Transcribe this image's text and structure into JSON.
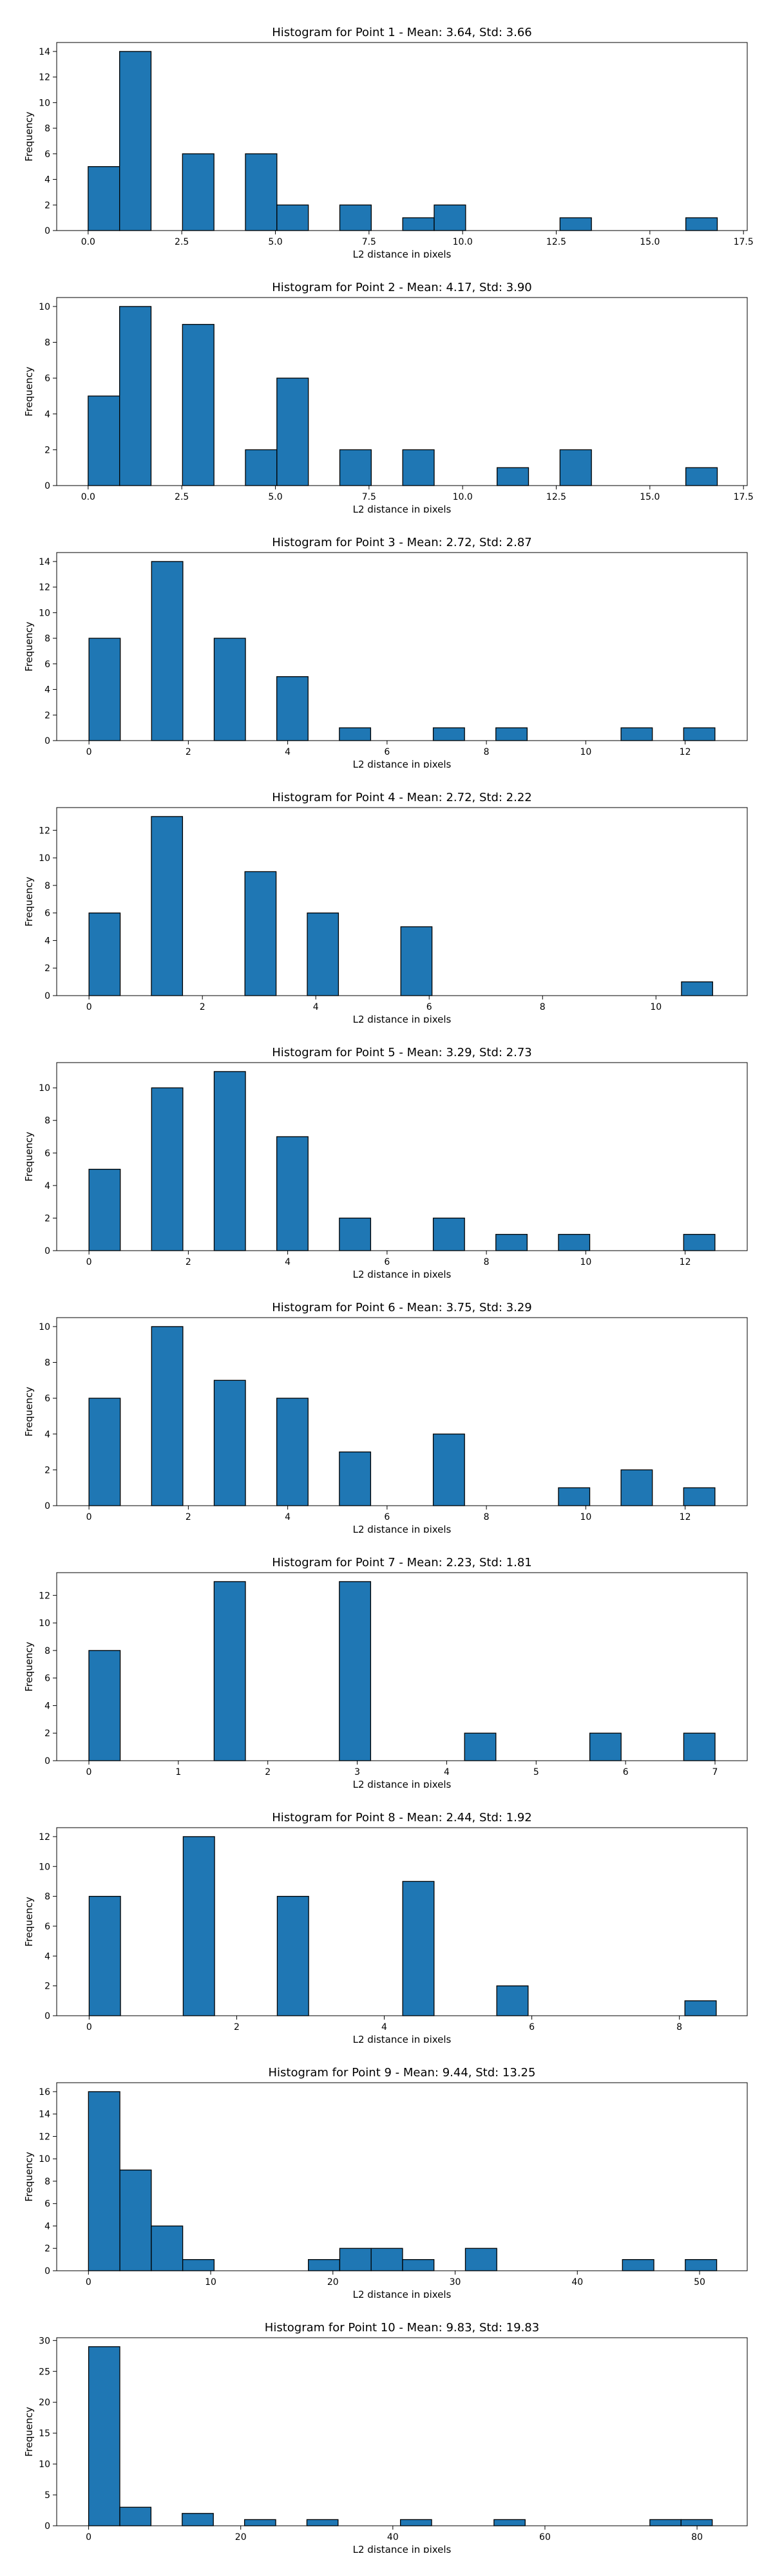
{
  "chart_data": [
    {
      "type": "bar",
      "title": "Histogram for Point 1 - Mean: 3.64, Std: 3.66",
      "xlabel": "L2 distance in pixels",
      "ylabel": "Frequency",
      "xlim": [
        -0.84,
        17.6
      ],
      "ylim": [
        0,
        14.7
      ],
      "xticks": [
        0.0,
        2.5,
        5.0,
        7.5,
        10.0,
        12.5,
        15.0,
        17.5
      ],
      "xtick_labels": [
        "0.0",
        "2.5",
        "5.0",
        "7.5",
        "10.0",
        "12.5",
        "15.0",
        "17.5"
      ],
      "yticks": [
        0,
        2,
        4,
        6,
        8,
        10,
        12,
        14
      ],
      "ytick_labels": [
        "0",
        "2",
        "4",
        "6",
        "8",
        "10",
        "12",
        "14"
      ],
      "bars": [
        {
          "x0": 0.0,
          "x1": 0.84,
          "count": 5
        },
        {
          "x0": 0.84,
          "x1": 1.68,
          "count": 14
        },
        {
          "x0": 2.52,
          "x1": 3.36,
          "count": 6
        },
        {
          "x0": 4.2,
          "x1": 5.04,
          "count": 6
        },
        {
          "x0": 5.04,
          "x1": 5.88,
          "count": 2
        },
        {
          "x0": 6.72,
          "x1": 7.56,
          "count": 2
        },
        {
          "x0": 8.4,
          "x1": 9.24,
          "count": 1
        },
        {
          "x0": 9.24,
          "x1": 10.08,
          "count": 2
        },
        {
          "x0": 12.6,
          "x1": 13.44,
          "count": 1
        },
        {
          "x0": 15.96,
          "x1": 16.8,
          "count": 1
        }
      ]
    },
    {
      "type": "bar",
      "title": "Histogram for Point 2 - Mean: 4.17, Std: 3.90",
      "xlabel": "L2 distance in pixels",
      "ylabel": "Frequency",
      "xlim": [
        -0.84,
        17.6
      ],
      "ylim": [
        0,
        10.5
      ],
      "xticks": [
        0.0,
        2.5,
        5.0,
        7.5,
        10.0,
        12.5,
        15.0,
        17.5
      ],
      "xtick_labels": [
        "0.0",
        "2.5",
        "5.0",
        "7.5",
        "10.0",
        "12.5",
        "15.0",
        "17.5"
      ],
      "yticks": [
        0,
        2,
        4,
        6,
        8,
        10
      ],
      "ytick_labels": [
        "0",
        "2",
        "4",
        "6",
        "8",
        "10"
      ],
      "bars": [
        {
          "x0": 0.0,
          "x1": 0.84,
          "count": 5
        },
        {
          "x0": 0.84,
          "x1": 1.68,
          "count": 10
        },
        {
          "x0": 2.52,
          "x1": 3.36,
          "count": 9
        },
        {
          "x0": 4.2,
          "x1": 5.04,
          "count": 2
        },
        {
          "x0": 5.04,
          "x1": 5.88,
          "count": 6
        },
        {
          "x0": 6.72,
          "x1": 7.56,
          "count": 2
        },
        {
          "x0": 8.4,
          "x1": 9.24,
          "count": 2
        },
        {
          "x0": 10.92,
          "x1": 11.76,
          "count": 1
        },
        {
          "x0": 12.6,
          "x1": 13.44,
          "count": 2
        },
        {
          "x0": 15.96,
          "x1": 16.8,
          "count": 1
        }
      ]
    },
    {
      "type": "bar",
      "title": "Histogram for Point 3 - Mean: 2.72, Std: 2.87",
      "xlabel": "L2 distance in pixels",
      "ylabel": "Frequency",
      "xlim": [
        -0.65,
        13.25
      ],
      "ylim": [
        0,
        14.7
      ],
      "xticks": [
        0,
        2,
        4,
        6,
        8,
        10,
        12
      ],
      "xtick_labels": [
        "0",
        "2",
        "4",
        "6",
        "8",
        "10",
        "12"
      ],
      "yticks": [
        0,
        2,
        4,
        6,
        8,
        10,
        12,
        14
      ],
      "ytick_labels": [
        "0",
        "2",
        "4",
        "6",
        "8",
        "10",
        "12",
        "14"
      ],
      "bars": [
        {
          "x0": 0.0,
          "x1": 0.63,
          "count": 8
        },
        {
          "x0": 1.26,
          "x1": 1.89,
          "count": 14
        },
        {
          "x0": 2.52,
          "x1": 3.15,
          "count": 8
        },
        {
          "x0": 3.78,
          "x1": 4.41,
          "count": 5
        },
        {
          "x0": 5.04,
          "x1": 5.67,
          "count": 1
        },
        {
          "x0": 6.93,
          "x1": 7.56,
          "count": 1
        },
        {
          "x0": 8.19,
          "x1": 8.82,
          "count": 1
        },
        {
          "x0": 10.71,
          "x1": 11.34,
          "count": 1
        },
        {
          "x0": 11.97,
          "x1": 12.6,
          "count": 1
        }
      ]
    },
    {
      "type": "bar",
      "title": "Histogram for Point 4 - Mean: 2.72, Std: 2.22",
      "xlabel": "L2 distance in pixels",
      "ylabel": "Frequency",
      "xlim": [
        -0.57,
        11.61
      ],
      "ylim": [
        0,
        13.65
      ],
      "xticks": [
        0,
        2,
        4,
        6,
        8,
        10
      ],
      "xtick_labels": [
        "0",
        "2",
        "4",
        "6",
        "8",
        "10"
      ],
      "yticks": [
        0,
        2,
        4,
        6,
        8,
        10,
        12
      ],
      "ytick_labels": [
        "0",
        "2",
        "4",
        "6",
        "8",
        "10",
        "12"
      ],
      "bars": [
        {
          "x0": 0.0,
          "x1": 0.55,
          "count": 6
        },
        {
          "x0": 1.1,
          "x1": 1.65,
          "count": 13
        },
        {
          "x0": 2.75,
          "x1": 3.3,
          "count": 9
        },
        {
          "x0": 3.85,
          "x1": 4.4,
          "count": 6
        },
        {
          "x0": 5.5,
          "x1": 6.05,
          "count": 5
        },
        {
          "x0": 10.45,
          "x1": 11.0,
          "count": 1
        }
      ]
    },
    {
      "type": "bar",
      "title": "Histogram for Point 5 - Mean: 3.29, Std: 2.73",
      "xlabel": "L2 distance in pixels",
      "ylabel": "Frequency",
      "xlim": [
        -0.65,
        13.25
      ],
      "ylim": [
        0,
        11.55
      ],
      "xticks": [
        0,
        2,
        4,
        6,
        8,
        10,
        12
      ],
      "xtick_labels": [
        "0",
        "2",
        "4",
        "6",
        "8",
        "10",
        "12"
      ],
      "yticks": [
        0,
        2,
        4,
        6,
        8,
        10
      ],
      "ytick_labels": [
        "0",
        "2",
        "4",
        "6",
        "8",
        "10"
      ],
      "bars": [
        {
          "x0": 0.0,
          "x1": 0.63,
          "count": 5
        },
        {
          "x0": 1.26,
          "x1": 1.89,
          "count": 10
        },
        {
          "x0": 2.52,
          "x1": 3.15,
          "count": 11
        },
        {
          "x0": 3.78,
          "x1": 4.41,
          "count": 7
        },
        {
          "x0": 5.04,
          "x1": 5.67,
          "count": 2
        },
        {
          "x0": 6.93,
          "x1": 7.56,
          "count": 2
        },
        {
          "x0": 8.19,
          "x1": 8.82,
          "count": 1
        },
        {
          "x0": 9.45,
          "x1": 10.08,
          "count": 1
        },
        {
          "x0": 11.97,
          "x1": 12.6,
          "count": 1
        }
      ]
    },
    {
      "type": "bar",
      "title": "Histogram for Point 6 - Mean: 3.75, Std: 3.29",
      "xlabel": "L2 distance in pixels",
      "ylabel": "Frequency",
      "xlim": [
        -0.65,
        13.25
      ],
      "ylim": [
        0,
        10.5
      ],
      "xticks": [
        0,
        2,
        4,
        6,
        8,
        10,
        12
      ],
      "xtick_labels": [
        "0",
        "2",
        "4",
        "6",
        "8",
        "10",
        "12"
      ],
      "yticks": [
        0,
        2,
        4,
        6,
        8,
        10
      ],
      "ytick_labels": [
        "0",
        "2",
        "4",
        "6",
        "8",
        "10"
      ],
      "bars": [
        {
          "x0": 0.0,
          "x1": 0.63,
          "count": 6
        },
        {
          "x0": 1.26,
          "x1": 1.89,
          "count": 10
        },
        {
          "x0": 2.52,
          "x1": 3.15,
          "count": 7
        },
        {
          "x0": 3.78,
          "x1": 4.41,
          "count": 6
        },
        {
          "x0": 5.04,
          "x1": 5.67,
          "count": 3
        },
        {
          "x0": 6.93,
          "x1": 7.56,
          "count": 4
        },
        {
          "x0": 9.45,
          "x1": 10.08,
          "count": 1
        },
        {
          "x0": 10.71,
          "x1": 11.34,
          "count": 2
        },
        {
          "x0": 11.97,
          "x1": 12.6,
          "count": 1
        }
      ]
    },
    {
      "type": "bar",
      "title": "Histogram for Point 7 - Mean: 2.23, Std: 1.81",
      "xlabel": "L2 distance in pixels",
      "ylabel": "Frequency",
      "xlim": [
        -0.36,
        7.36
      ],
      "ylim": [
        0,
        13.65
      ],
      "xticks": [
        0,
        1,
        2,
        3,
        4,
        5,
        6,
        7
      ],
      "xtick_labels": [
        "0",
        "1",
        "2",
        "3",
        "4",
        "5",
        "6",
        "7"
      ],
      "yticks": [
        0,
        2,
        4,
        6,
        8,
        10,
        12
      ],
      "ytick_labels": [
        "0",
        "2",
        "4",
        "6",
        "8",
        "10",
        "12"
      ],
      "bars": [
        {
          "x0": 0.0,
          "x1": 0.35,
          "count": 8
        },
        {
          "x0": 1.4,
          "x1": 1.75,
          "count": 13
        },
        {
          "x0": 2.8,
          "x1": 3.15,
          "count": 13
        },
        {
          "x0": 4.2,
          "x1": 4.55,
          "count": 2
        },
        {
          "x0": 5.6,
          "x1": 5.95,
          "count": 2
        },
        {
          "x0": 6.65,
          "x1": 7.0,
          "count": 2
        }
      ]
    },
    {
      "type": "bar",
      "title": "Histogram for Point 8 - Mean: 2.44, Std: 1.92",
      "xlabel": "L2 distance in pixels",
      "ylabel": "Frequency",
      "xlim": [
        -0.44,
        8.92
      ],
      "ylim": [
        0,
        12.6
      ],
      "xticks": [
        0,
        2,
        4,
        6,
        8
      ],
      "xtick_labels": [
        "0",
        "2",
        "4",
        "6",
        "8"
      ],
      "yticks": [
        0,
        2,
        4,
        6,
        8,
        10,
        12
      ],
      "ytick_labels": [
        "0",
        "2",
        "4",
        "6",
        "8",
        "10",
        "12"
      ],
      "bars": [
        {
          "x0": 0.0,
          "x1": 0.425,
          "count": 8
        },
        {
          "x0": 1.275,
          "x1": 1.7,
          "count": 12
        },
        {
          "x0": 2.55,
          "x1": 2.975,
          "count": 8
        },
        {
          "x0": 4.25,
          "x1": 4.675,
          "count": 9
        },
        {
          "x0": 5.525,
          "x1": 5.95,
          "count": 2
        },
        {
          "x0": 8.075,
          "x1": 8.5,
          "count": 1
        }
      ]
    },
    {
      "type": "bar",
      "title": "Histogram for Point 9 - Mean: 9.44, Std: 13.25",
      "xlabel": "L2 distance in pixels",
      "ylabel": "Frequency",
      "xlim": [
        -2.6,
        53.9
      ],
      "ylim": [
        0,
        16.8
      ],
      "xticks": [
        0,
        10,
        20,
        30,
        40,
        50
      ],
      "xtick_labels": [
        "0",
        "10",
        "20",
        "30",
        "40",
        "50"
      ],
      "yticks": [
        0,
        2,
        4,
        6,
        8,
        10,
        12,
        14,
        16
      ],
      "ytick_labels": [
        "0",
        "2",
        "4",
        "6",
        "8",
        "10",
        "12",
        "14",
        "16"
      ],
      "bars": [
        {
          "x0": 0.0,
          "x1": 2.57,
          "count": 16
        },
        {
          "x0": 2.57,
          "x1": 5.14,
          "count": 9
        },
        {
          "x0": 5.14,
          "x1": 7.71,
          "count": 4
        },
        {
          "x0": 7.71,
          "x1": 10.28,
          "count": 1
        },
        {
          "x0": 17.99,
          "x1": 20.56,
          "count": 1
        },
        {
          "x0": 20.56,
          "x1": 23.13,
          "count": 2
        },
        {
          "x0": 23.13,
          "x1": 25.7,
          "count": 2
        },
        {
          "x0": 25.7,
          "x1": 28.27,
          "count": 1
        },
        {
          "x0": 30.84,
          "x1": 33.41,
          "count": 2
        },
        {
          "x0": 43.69,
          "x1": 46.26,
          "count": 1
        },
        {
          "x0": 48.83,
          "x1": 51.4,
          "count": 1
        }
      ]
    },
    {
      "type": "bar",
      "title": "Histogram for Point 10 - Mean: 9.83, Std: 19.83",
      "xlabel": "L2 distance in pixels",
      "ylabel": "Frequency",
      "xlim": [
        -4.2,
        86.6
      ],
      "ylim": [
        0,
        30.45
      ],
      "xticks": [
        0,
        20,
        40,
        60,
        80
      ],
      "xtick_labels": [
        "0",
        "20",
        "40",
        "60",
        "80"
      ],
      "yticks": [
        0,
        5,
        10,
        15,
        20,
        25,
        30
      ],
      "ytick_labels": [
        "0",
        "5",
        "10",
        "15",
        "20",
        "25",
        "30"
      ],
      "bars": [
        {
          "x0": 0.0,
          "x1": 4.1,
          "count": 29
        },
        {
          "x0": 4.1,
          "x1": 8.2,
          "count": 3
        },
        {
          "x0": 12.3,
          "x1": 16.4,
          "count": 2
        },
        {
          "x0": 20.5,
          "x1": 24.6,
          "count": 1
        },
        {
          "x0": 28.7,
          "x1": 32.8,
          "count": 1
        },
        {
          "x0": 41.0,
          "x1": 45.1,
          "count": 1
        },
        {
          "x0": 53.3,
          "x1": 57.4,
          "count": 1
        },
        {
          "x0": 73.8,
          "x1": 77.9,
          "count": 1
        },
        {
          "x0": 77.9,
          "x1": 82.0,
          "count": 1
        }
      ]
    }
  ]
}
